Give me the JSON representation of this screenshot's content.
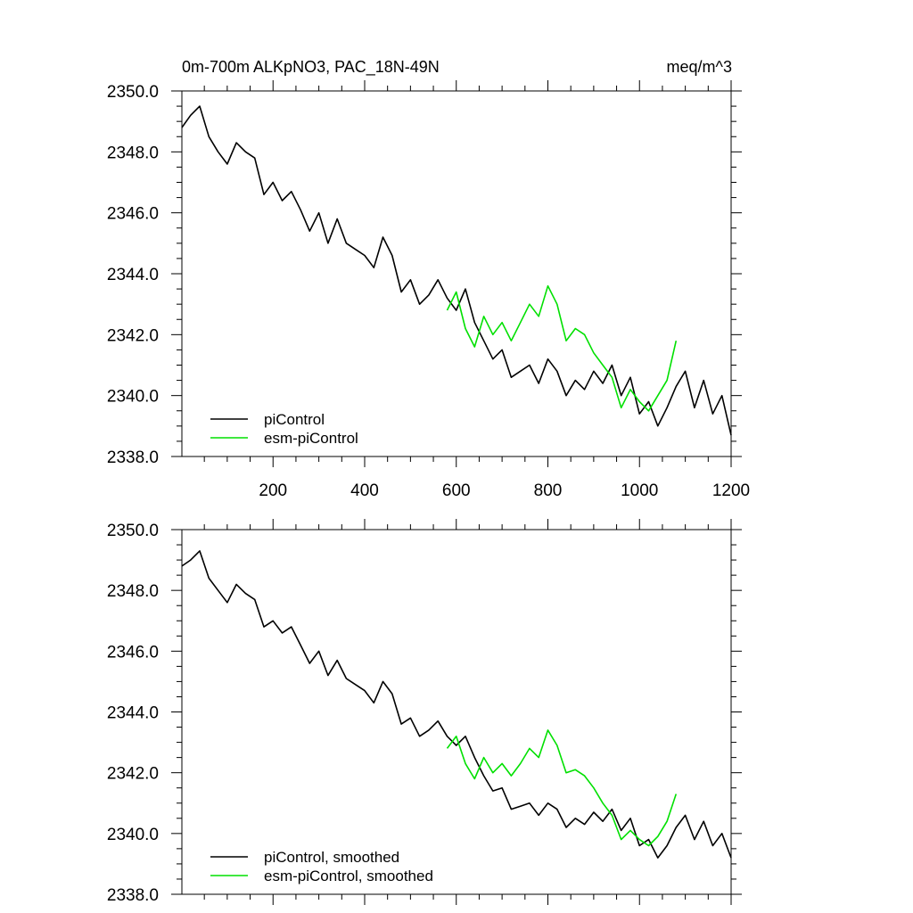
{
  "header": {
    "left_title": "0m-700m ALKpNO3, PAC_18N-49N",
    "units": "meq/m^3"
  },
  "chart_data": [
    {
      "type": "line",
      "xlim": [
        1,
        1200
      ],
      "ylim": [
        2338.0,
        2350.0
      ],
      "x_ticks": [
        "200",
        "400",
        "600",
        "800",
        "1000",
        "1200"
      ],
      "y_ticks": [
        "2338.0",
        "2340.0",
        "2342.0",
        "2344.0",
        "2346.0",
        "2348.0",
        "2350.0"
      ],
      "legend_position": "bottom-left",
      "series": [
        {
          "name": "piControl",
          "color": "#000000",
          "x": [
            1,
            20,
            40,
            60,
            80,
            100,
            120,
            140,
            160,
            180,
            200,
            220,
            240,
            260,
            280,
            300,
            320,
            340,
            360,
            380,
            400,
            420,
            440,
            460,
            480,
            500,
            520,
            540,
            560,
            580,
            600,
            620,
            640,
            660,
            680,
            700,
            720,
            740,
            760,
            780,
            800,
            820,
            840,
            860,
            880,
            900,
            920,
            940,
            960,
            980,
            1000,
            1020,
            1040,
            1060,
            1080,
            1100,
            1120,
            1140,
            1160,
            1180,
            1200
          ],
          "values": [
            2348.8,
            2349.2,
            2349.5,
            2348.5,
            2348.0,
            2347.6,
            2348.3,
            2348.0,
            2347.8,
            2346.6,
            2347.0,
            2346.4,
            2346.7,
            2346.1,
            2345.4,
            2346.0,
            2345.0,
            2345.8,
            2345.0,
            2344.8,
            2344.6,
            2344.2,
            2345.2,
            2344.6,
            2343.4,
            2343.8,
            2343.0,
            2343.3,
            2343.8,
            2343.2,
            2342.8,
            2343.5,
            2342.4,
            2341.8,
            2341.2,
            2341.5,
            2340.6,
            2340.8,
            2341.0,
            2340.4,
            2341.2,
            2340.8,
            2340.0,
            2340.5,
            2340.2,
            2340.8,
            2340.4,
            2341.0,
            2340.0,
            2340.6,
            2339.4,
            2339.8,
            2339.0,
            2339.6,
            2340.3,
            2340.8,
            2339.6,
            2340.5,
            2339.4,
            2340.0,
            2338.7
          ]
        },
        {
          "name": "esm-piControl",
          "color": "#00e000",
          "x": [
            580,
            600,
            620,
            640,
            660,
            680,
            700,
            720,
            740,
            760,
            780,
            800,
            820,
            840,
            860,
            880,
            900,
            920,
            940,
            960,
            980,
            1000,
            1020,
            1040,
            1060,
            1080
          ],
          "values": [
            2342.8,
            2343.4,
            2342.2,
            2341.6,
            2342.6,
            2342.0,
            2342.4,
            2341.8,
            2342.4,
            2343.0,
            2342.6,
            2343.6,
            2343.0,
            2341.8,
            2342.2,
            2342.0,
            2341.4,
            2341.0,
            2340.6,
            2339.6,
            2340.2,
            2339.8,
            2339.5,
            2340.0,
            2340.5,
            2341.8
          ]
        }
      ]
    },
    {
      "type": "line",
      "xlim": [
        1,
        1200
      ],
      "ylim": [
        2338.0,
        2350.0
      ],
      "x_ticks": [
        "200",
        "400",
        "600",
        "800",
        "1000",
        "1200"
      ],
      "y_ticks": [
        "2338.0",
        "2340.0",
        "2342.0",
        "2344.0",
        "2346.0",
        "2348.0",
        "2350.0"
      ],
      "legend_position": "bottom-left",
      "series": [
        {
          "name": "piControl, smoothed",
          "color": "#000000",
          "x": [
            1,
            20,
            40,
            60,
            80,
            100,
            120,
            140,
            160,
            180,
            200,
            220,
            240,
            260,
            280,
            300,
            320,
            340,
            360,
            380,
            400,
            420,
            440,
            460,
            480,
            500,
            520,
            540,
            560,
            580,
            600,
            620,
            640,
            660,
            680,
            700,
            720,
            740,
            760,
            780,
            800,
            820,
            840,
            860,
            880,
            900,
            920,
            940,
            960,
            980,
            1000,
            1020,
            1040,
            1060,
            1080,
            1100,
            1120,
            1140,
            1160,
            1180,
            1200
          ],
          "values": [
            2348.8,
            2349.0,
            2349.3,
            2348.4,
            2348.0,
            2347.6,
            2348.2,
            2347.9,
            2347.7,
            2346.8,
            2347.0,
            2346.6,
            2346.8,
            2346.2,
            2345.6,
            2346.0,
            2345.2,
            2345.7,
            2345.1,
            2344.9,
            2344.7,
            2344.3,
            2345.0,
            2344.6,
            2343.6,
            2343.8,
            2343.2,
            2343.4,
            2343.7,
            2343.2,
            2342.9,
            2343.2,
            2342.5,
            2341.9,
            2341.4,
            2341.5,
            2340.8,
            2340.9,
            2341.0,
            2340.6,
            2341.0,
            2340.8,
            2340.2,
            2340.5,
            2340.3,
            2340.7,
            2340.4,
            2340.8,
            2340.1,
            2340.5,
            2339.6,
            2339.8,
            2339.2,
            2339.6,
            2340.2,
            2340.6,
            2339.8,
            2340.4,
            2339.6,
            2340.0,
            2339.2
          ]
        },
        {
          "name": "esm-piControl, smoothed",
          "color": "#00e000",
          "x": [
            580,
            600,
            620,
            640,
            660,
            680,
            700,
            720,
            740,
            760,
            780,
            800,
            820,
            840,
            860,
            880,
            900,
            920,
            940,
            960,
            980,
            1000,
            1020,
            1040,
            1060,
            1080
          ],
          "values": [
            2342.8,
            2343.2,
            2342.3,
            2341.8,
            2342.5,
            2342.0,
            2342.3,
            2341.9,
            2342.3,
            2342.8,
            2342.5,
            2343.4,
            2342.9,
            2342.0,
            2342.1,
            2341.9,
            2341.5,
            2341.0,
            2340.6,
            2339.8,
            2340.1,
            2339.8,
            2339.6,
            2339.9,
            2340.4,
            2341.3
          ]
        }
      ]
    }
  ]
}
